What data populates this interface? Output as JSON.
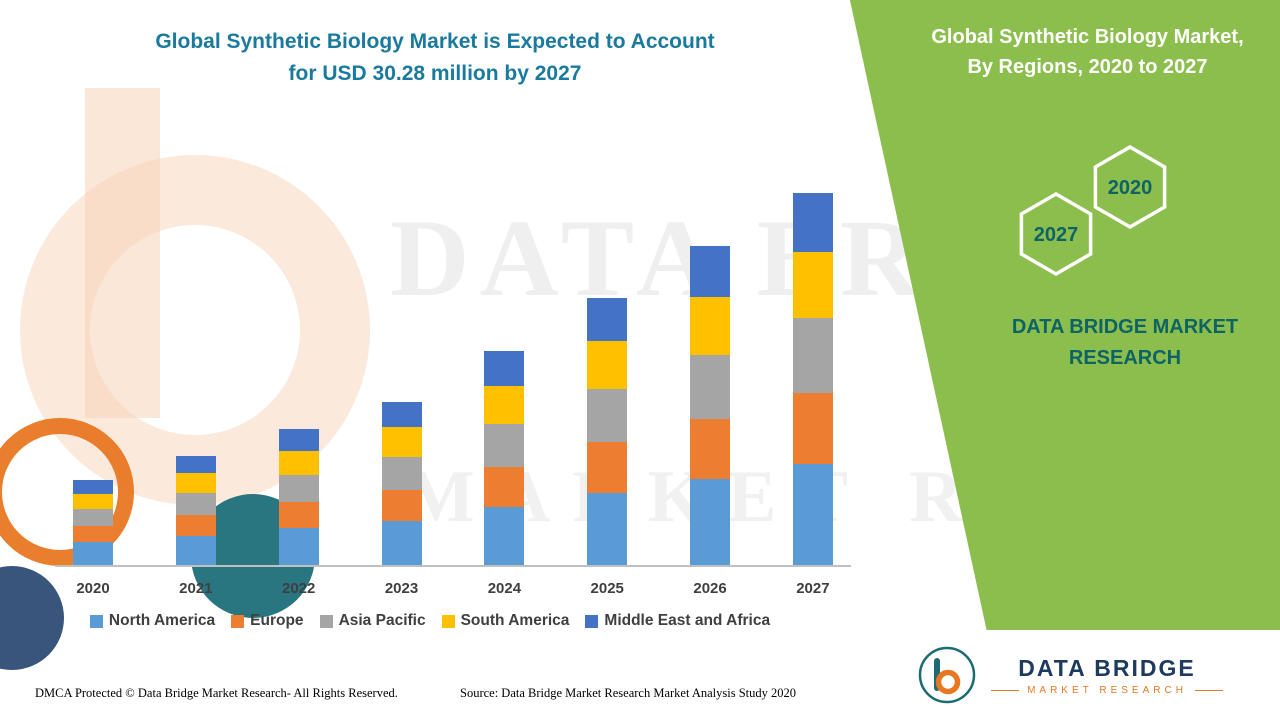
{
  "title": {
    "line1": "Global Synthetic Biology Market is Expected to Account",
    "line2": "for USD 30.28 million by 2027"
  },
  "right_panel": {
    "title_line1": "Global Synthetic Biology Market,",
    "title_line2": "By Regions, 2020 to 2027",
    "hex_2020": "2020",
    "hex_2027": "2027",
    "brand_line1": "DATA BRIDGE MARKET",
    "brand_line2": "RESEARCH"
  },
  "watermark": {
    "line1": "DATA BRIDGE",
    "line2": "MARKET RESEARCH"
  },
  "footer": {
    "left": "DMCA Protected © Data Bridge Market Research- All Rights Reserved.",
    "source": "Source: Data Bridge Market Research Market Analysis Study 2020"
  },
  "logo": {
    "name": "DATA BRIDGE",
    "subtitle": "MARKET RESEARCH"
  },
  "colors": {
    "green_panel": "#8CBE4E",
    "title_teal": "#1A7A9E",
    "dark_teal": "#0E6365",
    "logo_orange": "#E87722"
  },
  "chart_data": {
    "type": "bar",
    "stacked": true,
    "title": "Global Synthetic Biology Market is Expected to Account for USD 30.28 million by 2027",
    "unit": "USD million",
    "xlabel": "",
    "ylabel": "",
    "ylim": [
      0,
      32
    ],
    "grid": false,
    "legend_position": "bottom",
    "categories": [
      "2020",
      "2021",
      "2022",
      "2023",
      "2024",
      "2025",
      "2026",
      "2027"
    ],
    "totals": [
      6.9,
      8.9,
      11.1,
      13.3,
      17.4,
      21.7,
      26.0,
      30.28
    ],
    "series": [
      {
        "name": "North America",
        "color": "#5B9BD5",
        "values": [
          1.9,
          2.4,
          3.0,
          3.6,
          4.7,
          5.9,
          7.0,
          8.2
        ]
      },
      {
        "name": "Europe",
        "color": "#ED7D31",
        "values": [
          1.3,
          1.7,
          2.1,
          2.5,
          3.3,
          4.1,
          4.9,
          5.78
        ]
      },
      {
        "name": "Asia Pacific",
        "color": "#A5A5A5",
        "values": [
          1.4,
          1.8,
          2.2,
          2.7,
          3.5,
          4.3,
          5.2,
          6.1
        ]
      },
      {
        "name": "South America",
        "color": "#FFC000",
        "values": [
          1.2,
          1.6,
          2.0,
          2.4,
          3.1,
          3.9,
          4.7,
          5.4
        ]
      },
      {
        "name": "Middle East and Africa",
        "color": "#4472C4",
        "values": [
          1.1,
          1.4,
          1.8,
          2.1,
          2.8,
          3.5,
          4.2,
          4.8
        ]
      }
    ]
  }
}
